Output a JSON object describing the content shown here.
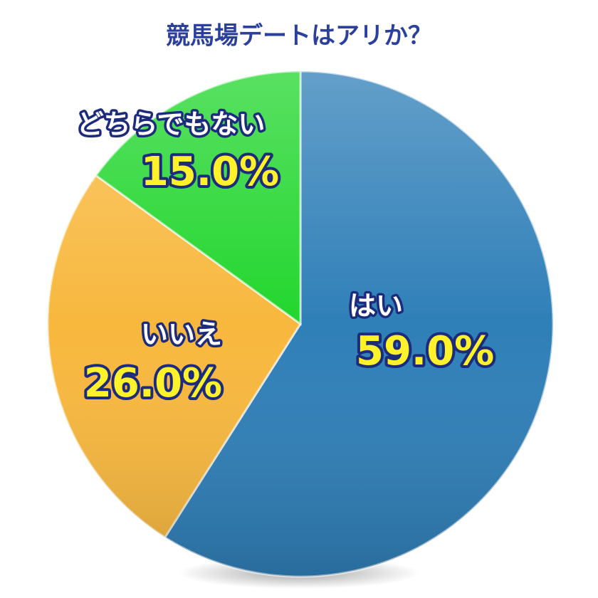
{
  "chart_data": {
    "type": "pie",
    "title": "競馬場デートはアリか？",
    "categories": [
      "はい",
      "いいえ",
      "どちらでもない"
    ],
    "values": [
      59.0,
      26.0,
      15.0
    ],
    "value_labels": [
      "59.0%",
      "26.0%",
      "15.0%"
    ],
    "colors": [
      "#2f7fb8",
      "#f8b83e",
      "#22d62e"
    ]
  }
}
